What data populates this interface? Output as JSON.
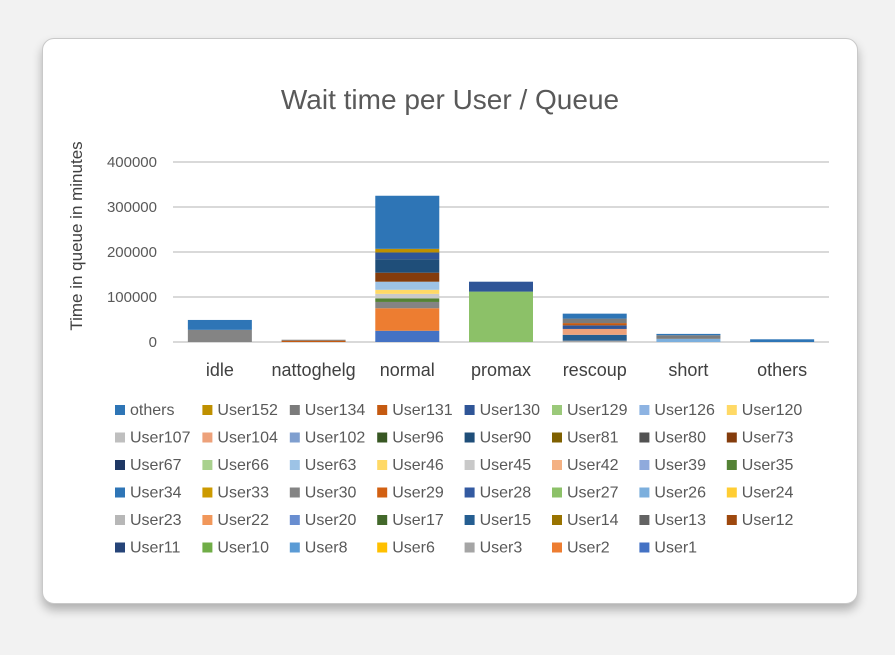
{
  "chart_data": {
    "type": "bar",
    "stacked": true,
    "title": "Wait time per User / Queue",
    "xlabel": "",
    "ylabel": "Time in queue in minutes",
    "ylim": [
      0,
      400000
    ],
    "yticks": [
      "0",
      "100000",
      "200000",
      "300000",
      "400000"
    ],
    "grid": true,
    "legend_position": "bottom",
    "categories": [
      "idle",
      "nattoghelg",
      "normal",
      "promax",
      "rescoup",
      "short",
      "others"
    ],
    "series": [
      {
        "name": "User1",
        "color": "#4472c4",
        "values": [
          0,
          0,
          25000,
          0,
          0,
          0,
          0
        ]
      },
      {
        "name": "User2",
        "color": "#ed7d31",
        "values": [
          0,
          0,
          50000,
          0,
          0,
          0,
          0
        ]
      },
      {
        "name": "User3",
        "color": "#a5a5a5",
        "values": [
          0,
          0,
          0,
          0,
          3000,
          0,
          0
        ]
      },
      {
        "name": "User6",
        "color": "#ffc000",
        "values": [
          0,
          0,
          0,
          0,
          0,
          0,
          0
        ]
      },
      {
        "name": "User8",
        "color": "#5b9bd5",
        "values": [
          0,
          0,
          0,
          0,
          0,
          0,
          0
        ]
      },
      {
        "name": "User10",
        "color": "#70ad47",
        "values": [
          0,
          0,
          0,
          0,
          0,
          0,
          0
        ]
      },
      {
        "name": "User11",
        "color": "#264478",
        "values": [
          0,
          0,
          0,
          0,
          0,
          0,
          0
        ]
      },
      {
        "name": "User12",
        "color": "#9e480e",
        "values": [
          0,
          0,
          0,
          0,
          0,
          0,
          0
        ]
      },
      {
        "name": "User13",
        "color": "#636363",
        "values": [
          0,
          0,
          0,
          0,
          0,
          0,
          0
        ]
      },
      {
        "name": "User14",
        "color": "#997300",
        "values": [
          0,
          0,
          0,
          0,
          0,
          0,
          0
        ]
      },
      {
        "name": "User15",
        "color": "#255e91",
        "values": [
          0,
          0,
          0,
          0,
          13000,
          0,
          0
        ]
      },
      {
        "name": "User17",
        "color": "#43682b",
        "values": [
          0,
          0,
          0,
          0,
          0,
          0,
          0
        ]
      },
      {
        "name": "User20",
        "color": "#698ed0",
        "values": [
          0,
          0,
          0,
          0,
          0,
          0,
          0
        ]
      },
      {
        "name": "User22",
        "color": "#f1975a",
        "values": [
          0,
          0,
          0,
          0,
          0,
          0,
          0
        ]
      },
      {
        "name": "User23",
        "color": "#b7b7b7",
        "values": [
          0,
          0,
          0,
          0,
          0,
          0,
          0
        ]
      },
      {
        "name": "User24",
        "color": "#ffcd33",
        "values": [
          0,
          0,
          0,
          0,
          0,
          0,
          0
        ]
      },
      {
        "name": "User26",
        "color": "#7cafdd",
        "values": [
          0,
          0,
          0,
          0,
          0,
          7000,
          0
        ]
      },
      {
        "name": "User27",
        "color": "#8cc168",
        "values": [
          0,
          0,
          0,
          112000,
          0,
          0,
          0
        ]
      },
      {
        "name": "User28",
        "color": "#335aa1",
        "values": [
          0,
          0,
          0,
          0,
          0,
          0,
          0
        ]
      },
      {
        "name": "User29",
        "color": "#d26012",
        "values": [
          0,
          0,
          0,
          0,
          0,
          0,
          0
        ]
      },
      {
        "name": "User30",
        "color": "#848484",
        "values": [
          27000,
          0,
          14000,
          0,
          0,
          0,
          0
        ]
      },
      {
        "name": "User33",
        "color": "#cc9a00",
        "values": [
          0,
          0,
          0,
          0,
          0,
          0,
          0
        ]
      },
      {
        "name": "User34",
        "color": "#2e75b6",
        "values": [
          0,
          0,
          0,
          0,
          0,
          0,
          0
        ]
      },
      {
        "name": "User35",
        "color": "#548235",
        "values": [
          0,
          0,
          8000,
          0,
          0,
          0,
          0
        ]
      },
      {
        "name": "User39",
        "color": "#8faadc",
        "values": [
          0,
          0,
          0,
          0,
          0,
          0,
          0
        ]
      },
      {
        "name": "User42",
        "color": "#f4b183",
        "values": [
          0,
          0,
          0,
          0,
          0,
          0,
          0
        ]
      },
      {
        "name": "User45",
        "color": "#c9c9c9",
        "values": [
          0,
          0,
          10000,
          0,
          0,
          0,
          0
        ]
      },
      {
        "name": "User46",
        "color": "#ffd966",
        "values": [
          0,
          0,
          9000,
          0,
          0,
          0,
          0
        ]
      },
      {
        "name": "User63",
        "color": "#9dc3e6",
        "values": [
          0,
          0,
          18000,
          0,
          0,
          0,
          0
        ]
      },
      {
        "name": "User66",
        "color": "#a9d18e",
        "values": [
          0,
          0,
          0,
          0,
          0,
          0,
          0
        ]
      },
      {
        "name": "User67",
        "color": "#1f3864",
        "values": [
          0,
          0,
          0,
          0,
          0,
          0,
          0
        ]
      },
      {
        "name": "User73",
        "color": "#843c0c",
        "values": [
          0,
          0,
          20000,
          0,
          0,
          0,
          0
        ]
      },
      {
        "name": "User80",
        "color": "#525252",
        "values": [
          0,
          0,
          0,
          0,
          0,
          0,
          0
        ]
      },
      {
        "name": "User81",
        "color": "#7f6000",
        "values": [
          0,
          0,
          0,
          0,
          0,
          0,
          0
        ]
      },
      {
        "name": "User90",
        "color": "#1f4e79",
        "values": [
          0,
          0,
          30000,
          0,
          0,
          0,
          0
        ]
      },
      {
        "name": "User96",
        "color": "#385723",
        "values": [
          0,
          0,
          0,
          0,
          0,
          0,
          0
        ]
      },
      {
        "name": "User102",
        "color": "#7f9fcf",
        "values": [
          0,
          0,
          0,
          0,
          0,
          0,
          0
        ]
      },
      {
        "name": "User104",
        "color": "#eda17a",
        "values": [
          0,
          0,
          0,
          0,
          13000,
          0,
          0
        ]
      },
      {
        "name": "User107",
        "color": "#bfbfbf",
        "values": [
          0,
          0,
          0,
          0,
          0,
          0,
          0
        ]
      },
      {
        "name": "User120",
        "color": "#ffd966",
        "values": [
          0,
          0,
          0,
          0,
          0,
          0,
          0
        ]
      },
      {
        "name": "User126",
        "color": "#8db3e2",
        "values": [
          0,
          0,
          0,
          0,
          0,
          0,
          0
        ]
      },
      {
        "name": "User129",
        "color": "#9bc97a",
        "values": [
          0,
          0,
          0,
          0,
          0,
          0,
          0
        ]
      },
      {
        "name": "User130",
        "color": "#2f5597",
        "values": [
          0,
          0,
          15000,
          22000,
          8000,
          0,
          0
        ]
      },
      {
        "name": "User131",
        "color": "#c55a11",
        "values": [
          0,
          3000,
          0,
          0,
          5000,
          0,
          0
        ]
      },
      {
        "name": "User134",
        "color": "#7b7b7b",
        "values": [
          0,
          2000,
          0,
          0,
          10000,
          8000,
          0
        ]
      },
      {
        "name": "User152",
        "color": "#bf9000",
        "values": [
          0,
          0,
          8000,
          0,
          0,
          0,
          0
        ]
      },
      {
        "name": "others",
        "color": "#2e75b6",
        "values": [
          22000,
          0,
          118000,
          0,
          11000,
          3000,
          6000
        ]
      }
    ]
  }
}
